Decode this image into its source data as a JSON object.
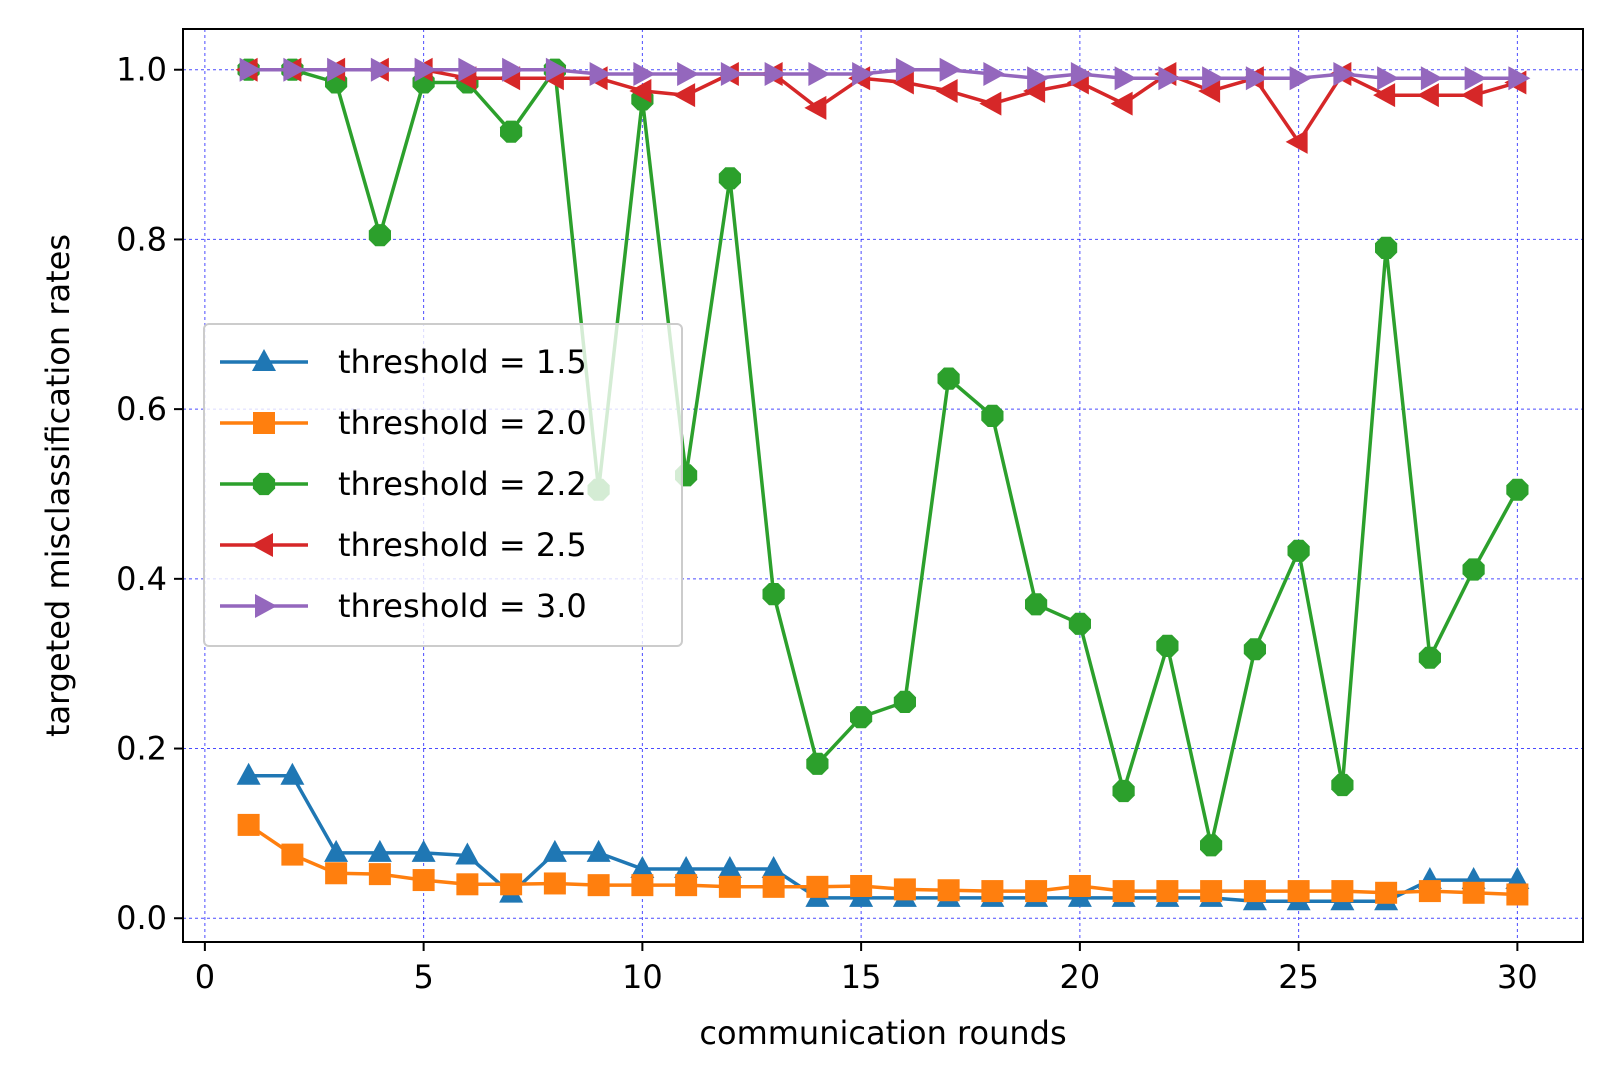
{
  "chart_data": {
    "type": "line",
    "xlabel": "communication rounds",
    "ylabel": "targeted misclassification rates",
    "xlim": [
      -0.5,
      31.5
    ],
    "ylim": [
      -0.028,
      1.048
    ],
    "xticks": [
      0,
      5,
      10,
      15,
      20,
      25,
      30
    ],
    "xtick_labels": [
      "0",
      "5",
      "10",
      "15",
      "20",
      "25",
      "30"
    ],
    "yticks": [
      0.0,
      0.2,
      0.4,
      0.6,
      0.8,
      1.0
    ],
    "ytick_labels": [
      "0.0",
      "0.2",
      "0.4",
      "0.6",
      "0.8",
      "1.0"
    ],
    "grid": true,
    "legend_position": "center-left",
    "x": [
      1,
      2,
      3,
      4,
      5,
      6,
      7,
      8,
      9,
      10,
      11,
      12,
      13,
      14,
      15,
      16,
      17,
      18,
      19,
      20,
      21,
      22,
      23,
      24,
      25,
      26,
      27,
      28,
      29,
      30
    ],
    "series": [
      {
        "name": "threshold = 1.5",
        "color": "#1f77b4",
        "marker": "triangle-up",
        "values": [
          0.168,
          0.168,
          0.077,
          0.077,
          0.077,
          0.074,
          0.029,
          0.077,
          0.077,
          0.058,
          0.058,
          0.058,
          0.058,
          0.024,
          0.024,
          0.024,
          0.024,
          0.024,
          0.024,
          0.024,
          0.024,
          0.024,
          0.024,
          0.02,
          0.02,
          0.02,
          0.02,
          0.045,
          0.045,
          0.045
        ]
      },
      {
        "name": "threshold = 2.0",
        "color": "#ff7f0e",
        "marker": "square",
        "values": [
          0.11,
          0.075,
          0.053,
          0.052,
          0.045,
          0.04,
          0.04,
          0.041,
          0.039,
          0.039,
          0.039,
          0.037,
          0.037,
          0.037,
          0.038,
          0.034,
          0.033,
          0.032,
          0.032,
          0.038,
          0.032,
          0.032,
          0.032,
          0.032,
          0.032,
          0.032,
          0.03,
          0.032,
          0.03,
          0.028
        ]
      },
      {
        "name": "threshold = 2.2",
        "color": "#2ca02c",
        "marker": "octagon",
        "values": [
          1.0,
          1.0,
          0.985,
          0.805,
          0.985,
          0.985,
          0.927,
          1.0,
          0.505,
          0.965,
          0.522,
          0.872,
          0.382,
          0.182,
          0.237,
          0.255,
          0.636,
          0.592,
          0.37,
          0.347,
          0.15,
          0.321,
          0.086,
          0.317,
          0.433,
          0.157,
          0.79,
          0.307,
          0.411,
          0.505
        ]
      },
      {
        "name": "threshold = 2.5",
        "color": "#d62728",
        "marker": "triangle-left",
        "values": [
          1.0,
          1.0,
          1.0,
          1.0,
          1.0,
          0.99,
          0.99,
          0.99,
          0.99,
          0.975,
          0.97,
          0.995,
          0.995,
          0.955,
          0.99,
          0.985,
          0.975,
          0.96,
          0.975,
          0.985,
          0.96,
          0.995,
          0.975,
          0.99,
          0.915,
          0.995,
          0.97,
          0.97,
          0.97,
          0.985
        ]
      },
      {
        "name": "threshold = 3.0",
        "color": "#9467bd",
        "marker": "triangle-right",
        "values": [
          1.0,
          1.0,
          1.0,
          1.0,
          1.0,
          1.0,
          1.0,
          1.0,
          0.995,
          0.995,
          0.995,
          0.995,
          0.995,
          0.995,
          0.995,
          1.0,
          1.0,
          0.995,
          0.99,
          0.995,
          0.99,
          0.99,
          0.99,
          0.99,
          0.99,
          0.995,
          0.99,
          0.99,
          0.99,
          0.99
        ]
      }
    ]
  }
}
